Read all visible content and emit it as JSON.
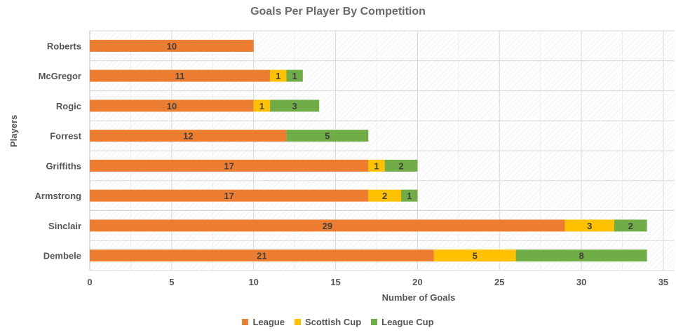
{
  "chart_data": {
    "type": "bar",
    "orientation": "horizontal",
    "stacked": true,
    "title": "Goals Per Player By Competition",
    "xlabel": "Number of Goals",
    "ylabel": "Players",
    "xlim": [
      0,
      35
    ],
    "x_ticks": [
      "0",
      "5",
      "10",
      "15",
      "20",
      "25",
      "30",
      "35"
    ],
    "categories": [
      "Roberts",
      "McGregor",
      "Rogic",
      "Forrest",
      "Griffiths",
      "Armstrong",
      "Sinclair",
      "Dembele"
    ],
    "series": [
      {
        "name": "League",
        "color": "#ED7D31",
        "values": [
          10,
          11,
          10,
          12,
          17,
          17,
          29,
          21
        ]
      },
      {
        "name": "Scottish Cup",
        "color": "#FFC000",
        "values": [
          0,
          1,
          1,
          0,
          1,
          2,
          3,
          5
        ]
      },
      {
        "name": "League Cup",
        "color": "#70AD47",
        "values": [
          0,
          1,
          3,
          5,
          2,
          1,
          2,
          8
        ]
      }
    ],
    "grid": true,
    "legend_position": "bottom"
  }
}
